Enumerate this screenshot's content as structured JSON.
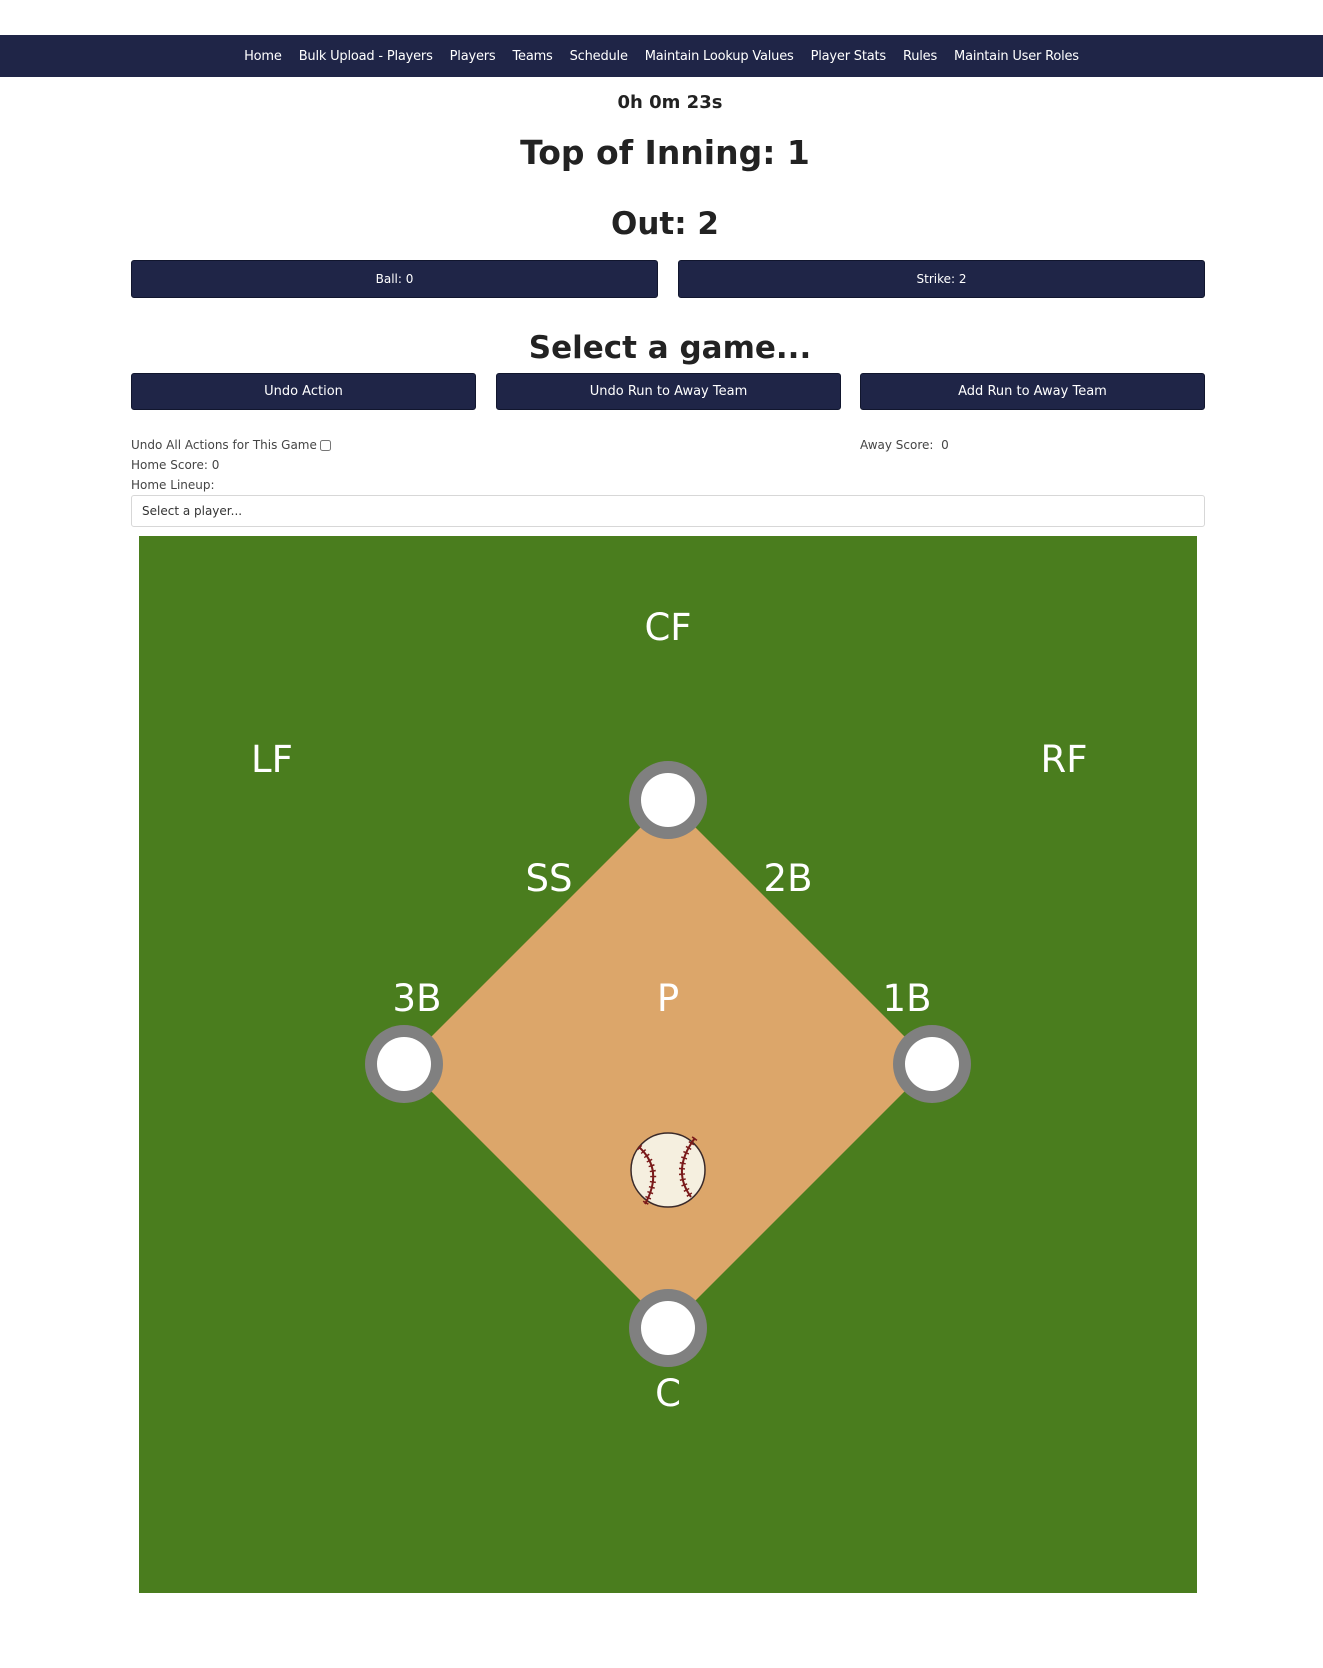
{
  "nav": {
    "items": [
      "Home",
      "Bulk Upload - Players",
      "Players",
      "Teams",
      "Schedule",
      "Maintain Lookup Values",
      "Player Stats",
      "Rules",
      "Maintain User Roles"
    ]
  },
  "game": {
    "timer": "0h 0m 23s",
    "inning": "Top of Inning: 1",
    "outs": "Out: 2",
    "ball_label": "Ball: 0",
    "strike_label": "Strike: 2",
    "select_title": "Select a game..."
  },
  "actions": {
    "undo_action": "Undo Action",
    "undo_run_away": "Undo Run to Away Team",
    "add_run_away": "Add Run to Away Team"
  },
  "scores": {
    "undo_all_label": "Undo All Actions for This Game",
    "home_score": "Home Score: 0",
    "home_lineup_label": "Home Lineup:",
    "away_score": "Away Score:  0"
  },
  "lineup_select": {
    "placeholder": "Select a player..."
  },
  "field": {
    "positions": {
      "cf": "CF",
      "lf": "LF",
      "rf": "RF",
      "ss": "SS",
      "second": "2B",
      "third": "3B",
      "first": "1B",
      "pitcher": "P",
      "catcher": "C"
    },
    "colors": {
      "grass": "#4a7d1e",
      "infield": "#dca66a",
      "base_ring": "#808080",
      "base": "#ffffff"
    }
  },
  "theme": {
    "primary": "#1f2547"
  }
}
